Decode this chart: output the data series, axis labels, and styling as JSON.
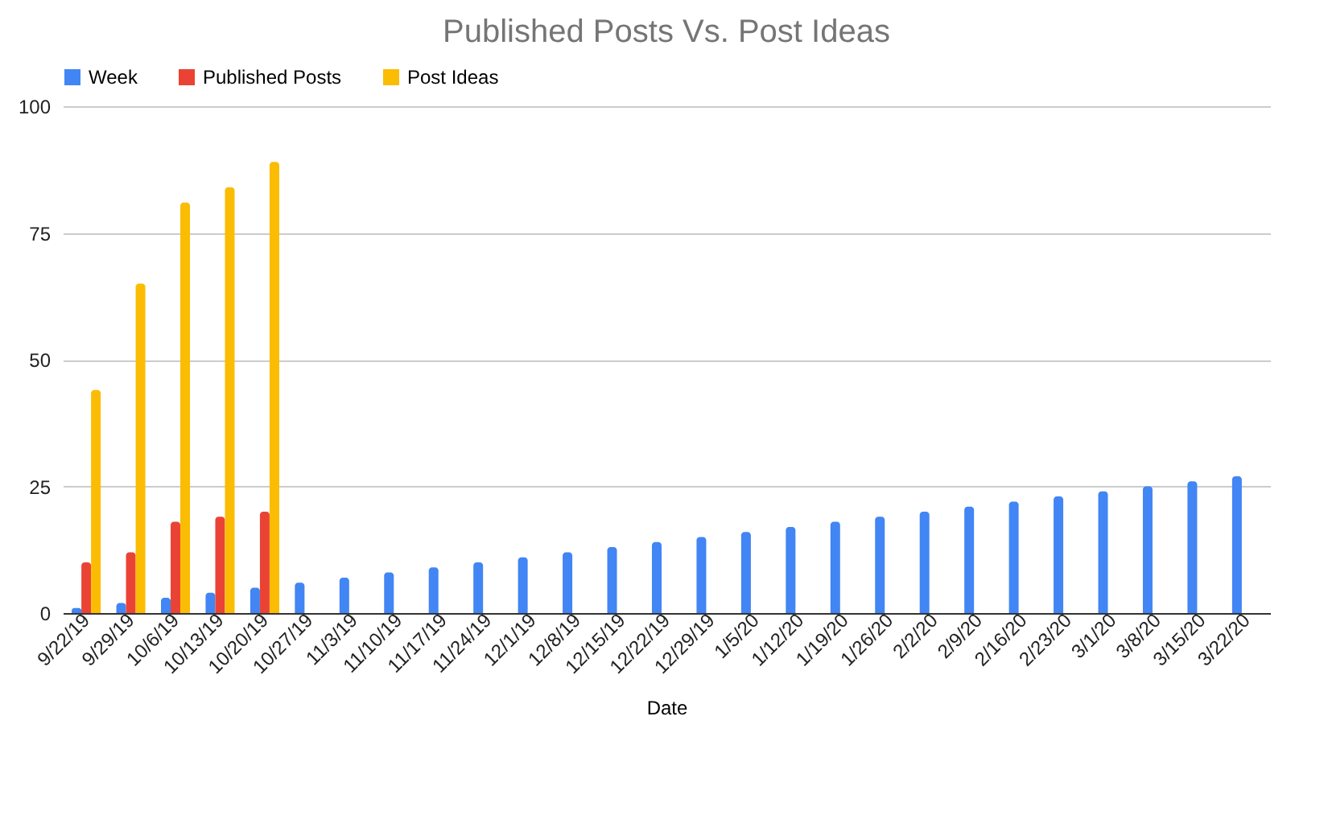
{
  "chart_data": {
    "type": "bar",
    "title": "Published Posts Vs. Post Ideas",
    "xlabel": "Date",
    "categories": [
      "9/22/19",
      "9/29/19",
      "10/6/19",
      "10/13/19",
      "10/20/19",
      "10/27/19",
      "11/3/19",
      "11/10/19",
      "11/17/19",
      "11/24/19",
      "12/1/19",
      "12/8/19",
      "12/15/19",
      "12/22/19",
      "12/29/19",
      "1/5/20",
      "1/12/20",
      "1/19/20",
      "1/26/20",
      "2/2/20",
      "2/9/20",
      "2/16/20",
      "2/23/20",
      "3/1/20",
      "3/8/20",
      "3/15/20",
      "3/22/20"
    ],
    "series": [
      {
        "name": "Week",
        "color": "#4285f4",
        "values": [
          1,
          2,
          3,
          4,
          5,
          6,
          7,
          8,
          9,
          10,
          11,
          12,
          13,
          14,
          15,
          16,
          17,
          18,
          19,
          20,
          21,
          22,
          23,
          24,
          25,
          26,
          27
        ]
      },
      {
        "name": "Published Posts",
        "color": "#ea4335",
        "values": [
          10,
          12,
          18,
          19,
          20,
          null,
          null,
          null,
          null,
          null,
          null,
          null,
          null,
          null,
          null,
          null,
          null,
          null,
          null,
          null,
          null,
          null,
          null,
          null,
          null,
          null,
          null
        ]
      },
      {
        "name": "Post Ideas",
        "color": "#fbbc04",
        "values": [
          44,
          65,
          81,
          84,
          89,
          null,
          null,
          null,
          null,
          null,
          null,
          null,
          null,
          null,
          null,
          null,
          null,
          null,
          null,
          null,
          null,
          null,
          null,
          null,
          null,
          null,
          null
        ]
      }
    ],
    "ylim": [
      0,
      100
    ],
    "yticks": [
      0,
      25,
      50,
      75,
      100
    ],
    "grid": "y",
    "legend": "top"
  }
}
